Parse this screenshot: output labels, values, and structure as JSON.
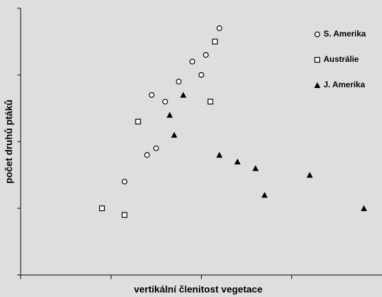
{
  "chart_data": {
    "type": "scatter",
    "x_label": "vertikální členitost vegetace",
    "y_label": "počet druhů ptáků",
    "xlim": [
      0,
      4
    ],
    "ylim": [
      0,
      4
    ],
    "xticks": [
      0,
      1,
      2,
      3
    ],
    "yticks": [
      0,
      1,
      2,
      3,
      4
    ],
    "legend": "upper right",
    "series": [
      {
        "name": "S. Amerika",
        "color": "#000000",
        "marker": "circle",
        "x": [
          1.15,
          1.4,
          1.5,
          1.45,
          1.6,
          1.75,
          1.9,
          2.0,
          2.05,
          2.2
        ],
        "values": [
          1.4,
          1.8,
          1.9,
          2.7,
          2.6,
          2.9,
          3.2,
          3.0,
          3.3,
          3.7
        ]
      },
      {
        "name": "Austrálie",
        "color": "#000000",
        "marker": "square",
        "x": [
          0.9,
          1.15,
          1.3,
          2.1,
          2.15
        ],
        "values": [
          1.0,
          0.9,
          2.3,
          2.6,
          3.5
        ]
      },
      {
        "name": "J. Amerika",
        "color": "#000000",
        "marker": "triangle",
        "x": [
          1.65,
          1.7,
          1.8,
          2.2,
          2.4,
          2.6,
          2.7,
          3.2,
          3.8
        ],
        "values": [
          2.4,
          2.1,
          2.7,
          1.8,
          1.7,
          1.6,
          1.2,
          1.5,
          1.0
        ]
      }
    ]
  }
}
